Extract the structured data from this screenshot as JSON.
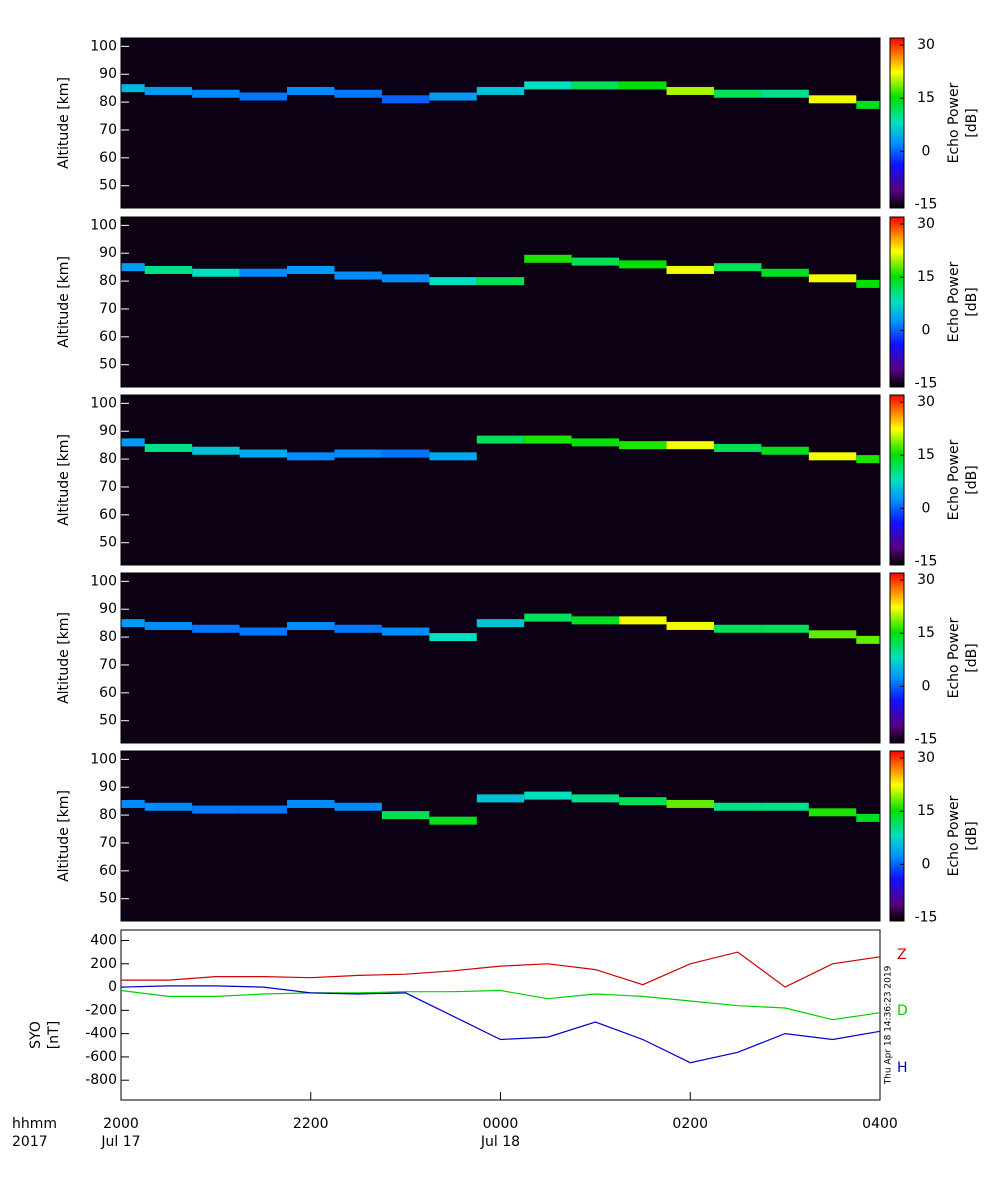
{
  "chart_data": [
    {
      "type": "spectrogram",
      "y_label": "Altitude [km]",
      "colorbar_label": [
        "Echo Power",
        "[dB]"
      ],
      "clim": [
        -16,
        32
      ],
      "cticks": [
        -15,
        0,
        15,
        30
      ],
      "ylim": [
        42,
        103
      ],
      "yticks": [
        50,
        60,
        70,
        80,
        90,
        100
      ],
      "xlim": [
        20,
        28
      ],
      "x": [
        20,
        20.5,
        21,
        21.5,
        22,
        22.5,
        23,
        23.5,
        24,
        24.5,
        25,
        25.5,
        26,
        26.5,
        27,
        27.5,
        28
      ],
      "values": [
        85,
        84,
        83,
        82,
        84,
        83,
        81,
        82,
        84,
        86,
        86,
        86,
        84,
        83,
        83,
        81,
        79
      ],
      "power": [
        5,
        3,
        2,
        1,
        2,
        1,
        0,
        3,
        6,
        8,
        12,
        15,
        20,
        12,
        10,
        22,
        14
      ]
    },
    {
      "type": "spectrogram",
      "y_label": "Altitude [km]",
      "colorbar_label": [
        "Echo Power",
        "[dB]"
      ],
      "clim": [
        -16,
        32
      ],
      "cticks": [
        -15,
        0,
        15,
        30
      ],
      "ylim": [
        42,
        103
      ],
      "yticks": [
        50,
        60,
        70,
        80,
        90,
        100
      ],
      "xlim": [
        20,
        28
      ],
      "x": [
        20,
        20.5,
        21,
        21.5,
        22,
        22.5,
        23,
        23.5,
        24,
        24.5,
        25,
        25.5,
        26,
        26.5,
        27,
        27.5,
        28
      ],
      "values": [
        85,
        84,
        83,
        83,
        84,
        82,
        81,
        80,
        80,
        88,
        87,
        86,
        84,
        85,
        83,
        81,
        79
      ],
      "power": [
        3,
        10,
        8,
        2,
        3,
        2,
        2,
        8,
        12,
        16,
        12,
        15,
        22,
        12,
        14,
        22,
        15
      ]
    },
    {
      "type": "spectrogram",
      "y_label": "Altitude [km]",
      "colorbar_label": [
        "Echo Power",
        "[dB]"
      ],
      "clim": [
        -16,
        32
      ],
      "cticks": [
        -15,
        0,
        15,
        30
      ],
      "ylim": [
        42,
        103
      ],
      "yticks": [
        50,
        60,
        70,
        80,
        90,
        100
      ],
      "xlim": [
        20,
        28
      ],
      "x": [
        20,
        20.5,
        21,
        21.5,
        22,
        22.5,
        23,
        23.5,
        24,
        24.5,
        25,
        25.5,
        26,
        26.5,
        27,
        27.5,
        28
      ],
      "values": [
        86,
        84,
        83,
        82,
        81,
        82,
        82,
        81,
        87,
        87,
        86,
        85,
        85,
        84,
        83,
        81,
        80
      ],
      "power": [
        3,
        10,
        6,
        4,
        2,
        2,
        1,
        4,
        12,
        16,
        15,
        16,
        22,
        12,
        14,
        22,
        16
      ]
    },
    {
      "type": "spectrogram",
      "y_label": "Altitude [km]",
      "colorbar_label": [
        "Echo Power",
        "[dB]"
      ],
      "clim": [
        -16,
        32
      ],
      "cticks": [
        -15,
        0,
        15,
        30
      ],
      "ylim": [
        42,
        103
      ],
      "yticks": [
        50,
        60,
        70,
        80,
        90,
        100
      ],
      "xlim": [
        20,
        28
      ],
      "x": [
        20,
        20.5,
        21,
        21.5,
        22,
        22.5,
        23,
        23.5,
        24,
        24.5,
        25,
        25.5,
        26,
        26.5,
        27,
        27.5,
        28
      ],
      "values": [
        85,
        84,
        83,
        82,
        84,
        83,
        82,
        80,
        85,
        87,
        86,
        86,
        84,
        83,
        83,
        81,
        79
      ],
      "power": [
        3,
        2,
        1,
        1,
        2,
        1,
        2,
        8,
        6,
        12,
        14,
        22,
        22,
        12,
        12,
        18,
        18
      ]
    },
    {
      "type": "spectrogram",
      "y_label": "Altitude [km]",
      "colorbar_label": [
        "Echo Power",
        "[dB]"
      ],
      "clim": [
        -16,
        32
      ],
      "cticks": [
        -15,
        0,
        15,
        30
      ],
      "ylim": [
        42,
        103
      ],
      "yticks": [
        50,
        60,
        70,
        80,
        90,
        100
      ],
      "xlim": [
        20,
        28
      ],
      "x": [
        20,
        20.5,
        21,
        21.5,
        22,
        22.5,
        23,
        23.5,
        24,
        24.5,
        25,
        25.5,
        26,
        26.5,
        27,
        27.5,
        28
      ],
      "values": [
        84,
        83,
        82,
        82,
        84,
        83,
        80,
        78,
        86,
        87,
        86,
        85,
        84,
        83,
        83,
        81,
        79
      ],
      "power": [
        2,
        2,
        1,
        1,
        2,
        2,
        12,
        14,
        6,
        8,
        10,
        12,
        18,
        10,
        10,
        16,
        14
      ]
    },
    {
      "type": "line",
      "y_label": [
        "SYO",
        "[nT]"
      ],
      "ylim": [
        -970,
        490
      ],
      "yticks": [
        -800,
        -600,
        -400,
        -200,
        0,
        200,
        400
      ],
      "xlim": [
        20,
        28
      ],
      "xticks": [
        {
          "value": 20,
          "label": "2000"
        },
        {
          "value": 22,
          "label": "2200"
        },
        {
          "value": 24,
          "label": "0000"
        },
        {
          "value": 26,
          "label": "0200"
        },
        {
          "value": 28,
          "label": "0400"
        }
      ],
      "date_ticks": [
        {
          "value": 20,
          "label": "Jul 17"
        },
        {
          "value": 24,
          "label": "Jul 18"
        }
      ],
      "x_axis_titles": [
        "hhmm",
        "2017"
      ],
      "footnote": "Thu Apr 18 14:36:23 2019",
      "x": [
        20,
        20.5,
        21,
        21.5,
        22,
        22.5,
        23,
        23.5,
        24,
        24.5,
        25,
        25.5,
        26,
        26.5,
        27,
        27.5,
        28
      ],
      "series": [
        {
          "name": "Z",
          "color": "#d00000",
          "values": [
            60,
            60,
            90,
            90,
            80,
            100,
            110,
            140,
            180,
            200,
            150,
            20,
            200,
            300,
            0,
            200,
            260
          ]
        },
        {
          "name": "D",
          "color": "#00d000",
          "values": [
            -30,
            -80,
            -80,
            -60,
            -50,
            -50,
            -40,
            -40,
            -30,
            -100,
            -60,
            -80,
            -120,
            -160,
            -180,
            -280,
            -220
          ]
        },
        {
          "name": "H",
          "color": "#0000c8",
          "values": [
            0,
            10,
            10,
            0,
            -50,
            -60,
            -50,
            -250,
            -450,
            -430,
            -300,
            -450,
            -650,
            -560,
            -400,
            -450,
            -380
          ]
        }
      ]
    }
  ]
}
